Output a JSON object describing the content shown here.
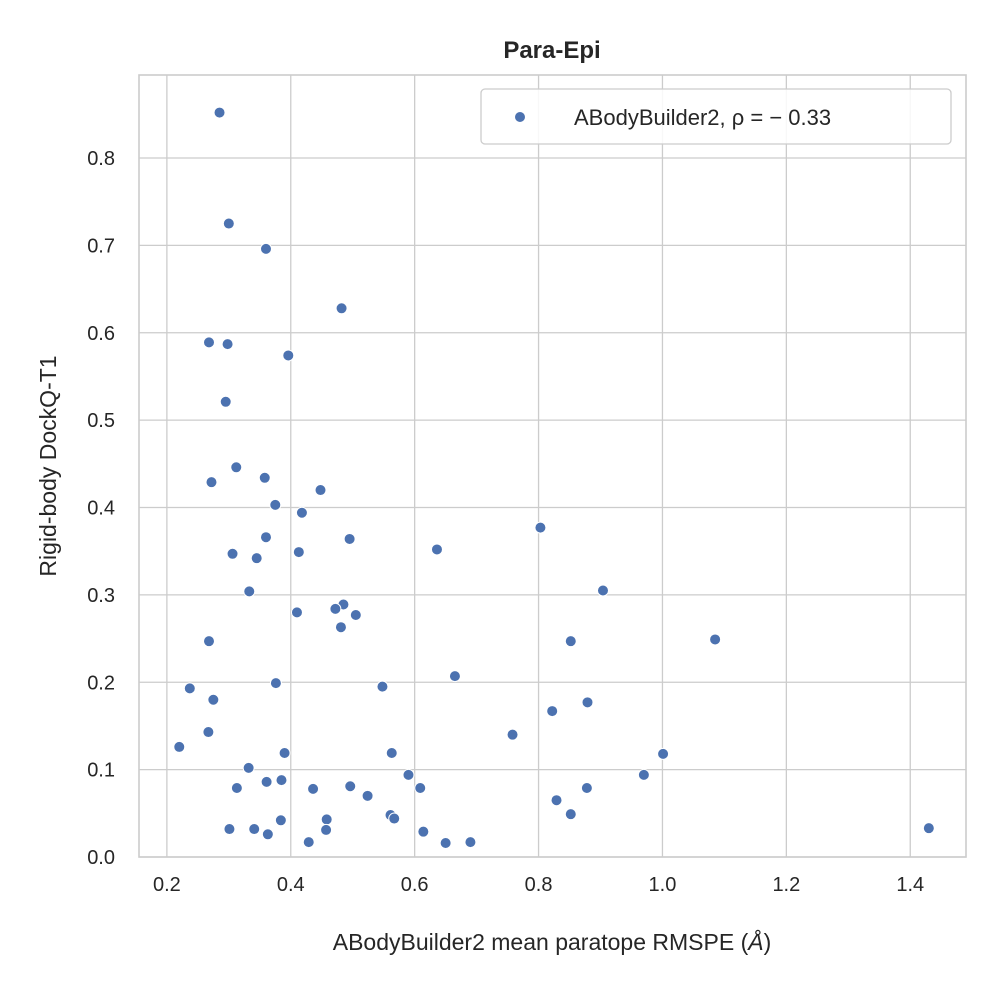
{
  "chart_data": {
    "type": "scatter",
    "title": "Para-Epi",
    "xlabel": "ABodyBuilder2 mean paratope RMSPE (",
    "xlabel_symbol": "Å",
    "xlabel_close": ")",
    "ylabel": "Rigid-body DockQ-T1",
    "xlim": [
      0.155,
      1.49
    ],
    "ylim": [
      0.0,
      0.895
    ],
    "x_ticks": [
      "0.2",
      "0.4",
      "0.6",
      "0.8",
      "1.0",
      "1.2",
      "1.4"
    ],
    "y_ticks": [
      "0.0",
      "0.1",
      "0.2",
      "0.3",
      "0.4",
      "0.5",
      "0.6",
      "0.7",
      "0.8"
    ],
    "grid": true,
    "legend_position": "top-right",
    "series": [
      {
        "name": "ABodyBuilder2, ρ = − 0.33",
        "color": "#4c72b0",
        "x": [
          0.285,
          0.3,
          0.36,
          0.482,
          0.268,
          0.298,
          0.396,
          0.295,
          0.312,
          0.358,
          0.272,
          0.448,
          0.375,
          0.418,
          0.36,
          0.495,
          0.413,
          0.306,
          0.345,
          0.636,
          0.803,
          0.333,
          0.41,
          0.485,
          0.472,
          0.505,
          0.481,
          0.904,
          0.268,
          0.852,
          1.085,
          0.376,
          0.665,
          0.237,
          0.275,
          0.548,
          0.822,
          0.879,
          0.267,
          0.758,
          0.22,
          0.39,
          0.563,
          1.001,
          0.332,
          0.59,
          0.97,
          0.361,
          0.385,
          0.313,
          0.436,
          0.496,
          0.524,
          0.609,
          0.878,
          0.829,
          0.852,
          0.561,
          0.567,
          0.458,
          0.384,
          0.301,
          0.341,
          0.363,
          0.457,
          0.614,
          0.429,
          0.65,
          0.69,
          1.43
        ],
        "y": [
          0.852,
          0.725,
          0.696,
          0.628,
          0.589,
          0.587,
          0.574,
          0.521,
          0.446,
          0.434,
          0.429,
          0.42,
          0.403,
          0.394,
          0.366,
          0.364,
          0.349,
          0.347,
          0.342,
          0.352,
          0.377,
          0.304,
          0.28,
          0.289,
          0.284,
          0.277,
          0.263,
          0.305,
          0.247,
          0.247,
          0.249,
          0.199,
          0.207,
          0.193,
          0.18,
          0.195,
          0.167,
          0.177,
          0.143,
          0.14,
          0.126,
          0.119,
          0.119,
          0.118,
          0.102,
          0.094,
          0.094,
          0.086,
          0.088,
          0.079,
          0.078,
          0.081,
          0.07,
          0.079,
          0.079,
          0.065,
          0.049,
          0.048,
          0.044,
          0.043,
          0.042,
          0.032,
          0.032,
          0.026,
          0.031,
          0.029,
          0.017,
          0.016,
          0.017,
          0.033
        ]
      }
    ]
  }
}
